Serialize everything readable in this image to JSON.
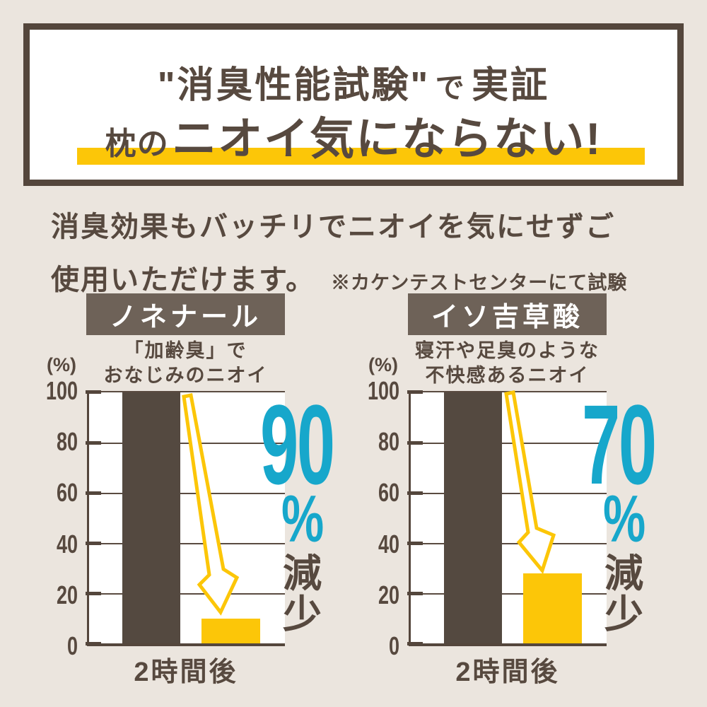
{
  "header": {
    "line1": {
      "quoted": "\"消臭性能試験\"",
      "connector": "で",
      "emphasis": "実証"
    },
    "line2": {
      "prefix": "枕の",
      "emphasis": "ニオイ気にならない!"
    }
  },
  "intro": {
    "line1": "消臭効果もバッチリでニオイを気にせずご",
    "line2": "使用いただけます。",
    "note": "※カケンテストセンターにて試験"
  },
  "colors": {
    "background": "#EBE5DE",
    "panel": "#FFFFFF",
    "ink": "#57493F",
    "bar_initial": "#544940",
    "bar_after": "#FCC608",
    "accent_number": "#17A7CB",
    "highlight": "#FCC608",
    "label_box": "#6E6258"
  },
  "chart_data": [
    {
      "type": "bar",
      "title": "ノネナール",
      "subtitle_line1": "「加齢臭」で",
      "subtitle_line2": "おなじみのニオイ",
      "unit": "(%)",
      "ylim": [
        0,
        100
      ],
      "yticks": [
        100,
        80,
        60,
        40,
        20,
        0
      ],
      "grid": true,
      "categories": [
        "",
        "2時間後"
      ],
      "values": [
        100,
        10
      ],
      "series_colors": [
        "#544940",
        "#FCC608"
      ],
      "annotation": {
        "number": "90",
        "unit": "%",
        "label": "減少"
      }
    },
    {
      "type": "bar",
      "title": "イソ吉草酸",
      "subtitle_line1": "寝汗や足臭のような",
      "subtitle_line2": "不快感あるニオイ",
      "unit": "(%)",
      "ylim": [
        0,
        100
      ],
      "yticks": [
        100,
        80,
        60,
        40,
        20,
        0
      ],
      "grid": true,
      "categories": [
        "",
        "2時間後"
      ],
      "values": [
        100,
        28
      ],
      "series_colors": [
        "#544940",
        "#FCC608"
      ],
      "annotation": {
        "number": "70",
        "unit": "%",
        "label": "減少"
      }
    }
  ]
}
